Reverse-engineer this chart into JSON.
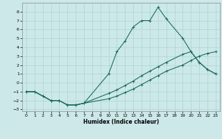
{
  "xlabel": "Humidex (Indice chaleur)",
  "bg_color": "#cce8e8",
  "line_color": "#1a6b5a",
  "grid_color": "#aad4d4",
  "xlim": [
    -0.5,
    23.5
  ],
  "ylim": [
    -3.2,
    9.0
  ],
  "yticks": [
    -3,
    -2,
    -1,
    0,
    1,
    2,
    3,
    4,
    5,
    6,
    7,
    8
  ],
  "xticks": [
    0,
    1,
    2,
    3,
    4,
    5,
    6,
    7,
    8,
    9,
    10,
    11,
    12,
    13,
    14,
    15,
    16,
    17,
    18,
    19,
    20,
    21,
    22,
    23
  ],
  "line1_x": [
    0,
    1,
    2,
    3,
    4,
    5,
    6,
    7,
    10,
    11,
    12,
    13,
    14,
    15,
    16,
    17,
    19,
    20,
    21,
    22,
    23
  ],
  "line1_y": [
    -1,
    -1,
    -1.5,
    -2,
    -2,
    -2.5,
    -2.5,
    -2.3,
    -1.8,
    -1.5,
    -1.1,
    -0.7,
    -0.2,
    0.3,
    0.8,
    1.3,
    2.0,
    2.5,
    3.0,
    3.3,
    3.5
  ],
  "line2_x": [
    0,
    1,
    2,
    3,
    4,
    5,
    6,
    7,
    10,
    11,
    12,
    13,
    14,
    15,
    16,
    17,
    19,
    20,
    21,
    22,
    23
  ],
  "line2_y": [
    -1,
    -1,
    -1.5,
    -2,
    -2,
    -2.5,
    -2.5,
    -2.3,
    -1.2,
    -0.8,
    -0.3,
    0.2,
    0.8,
    1.3,
    1.8,
    2.3,
    3.2,
    3.5,
    2.3,
    1.5,
    1.0
  ],
  "line3_x": [
    0,
    1,
    2,
    3,
    4,
    5,
    6,
    7,
    10,
    11,
    12,
    13,
    14,
    15,
    16,
    17,
    19,
    20,
    21,
    22,
    23
  ],
  "line3_y": [
    -1,
    -1,
    -1.5,
    -2,
    -2,
    -2.5,
    -2.5,
    -2.3,
    1.0,
    3.5,
    4.7,
    6.3,
    7.0,
    7.0,
    8.5,
    7.2,
    5.0,
    3.5,
    2.3,
    1.5,
    1.0
  ]
}
